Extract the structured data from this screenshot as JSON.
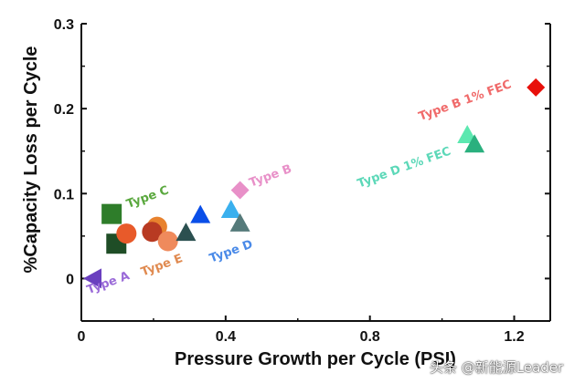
{
  "chart_data": {
    "type": "scatter",
    "xlabel": "Pressure Growth per Cycle (PSI)",
    "ylabel": "%Capacity Loss per Cycle",
    "xlim": [
      0,
      1.3
    ],
    "ylim": [
      -0.05,
      0.3
    ],
    "xticks": [
      0,
      0.4,
      0.8,
      1.2
    ],
    "xtick_labels": [
      "0",
      "0.4",
      "0.8",
      "1.2"
    ],
    "yticks": [
      0,
      0.1,
      0.2,
      0.3
    ],
    "ytick_labels": [
      "0",
      "0.1",
      "0.2",
      "0.3"
    ],
    "grid": false,
    "points": [
      {
        "group": "Type A",
        "marker": "triangle-left",
        "color": "#6a3fbf",
        "x": 0.033,
        "y": 0.0
      },
      {
        "group": "Type C",
        "marker": "square",
        "color": "#2e7d2a",
        "x": 0.084,
        "y": 0.076
      },
      {
        "group": "Type C",
        "marker": "square",
        "color": "#1f4d26",
        "x": 0.097,
        "y": 0.041
      },
      {
        "group": "Type E",
        "marker": "circle",
        "color": "#e85a2a",
        "x": 0.125,
        "y": 0.053
      },
      {
        "group": "Type E",
        "marker": "circle",
        "color": "#e8822e",
        "x": 0.21,
        "y": 0.061
      },
      {
        "group": "Type E",
        "marker": "circle",
        "color": "#b83a22",
        "x": 0.196,
        "y": 0.055
      },
      {
        "group": "Type E",
        "marker": "circle",
        "color": "#ef8a5c",
        "x": 0.24,
        "y": 0.044
      },
      {
        "group": "Type D",
        "marker": "triangle-up",
        "color": "#2b5050",
        "x": 0.29,
        "y": 0.054
      },
      {
        "group": "Type D",
        "marker": "triangle-up",
        "color": "#0a4ee8",
        "x": 0.33,
        "y": 0.075
      },
      {
        "group": "Type D",
        "marker": "triangle-up",
        "color": "#3ab0ee",
        "x": 0.415,
        "y": 0.081
      },
      {
        "group": "Type D",
        "marker": "triangle-up",
        "color": "#557a7a",
        "x": 0.44,
        "y": 0.065
      },
      {
        "group": "Type B",
        "marker": "diamond",
        "color": "#e890c8",
        "x": 0.44,
        "y": 0.104
      },
      {
        "group": "Type B 1% FEC",
        "marker": "diamond",
        "color": "#e8100a",
        "x": 1.26,
        "y": 0.225
      },
      {
        "group": "Type D 1% FEC",
        "marker": "triangle-up",
        "color": "#5ce8b0",
        "x": 1.07,
        "y": 0.169
      },
      {
        "group": "Type D 1% FEC",
        "marker": "triangle-up",
        "color": "#2ab07e",
        "x": 1.09,
        "y": 0.158
      }
    ],
    "annotations": [
      {
        "text": "Type A",
        "color": "#9a6ad8",
        "x": 0.02,
        "y": -0.018
      },
      {
        "text": "Type C",
        "color": "#5aa83e",
        "x": 0.13,
        "y": 0.083
      },
      {
        "text": "Type E",
        "color": "#e08a50",
        "x": 0.17,
        "y": 0.003
      },
      {
        "text": "Type D",
        "color": "#4a8ae8",
        "x": 0.36,
        "y": 0.019
      },
      {
        "text": "Type B",
        "color": "#e890c8",
        "x": 0.47,
        "y": 0.108
      },
      {
        "text": "Type B 1% FEC",
        "color": "#f06a6a",
        "x": 0.94,
        "y": 0.186
      },
      {
        "text": "Type D 1% FEC",
        "color": "#5cd8b8",
        "x": 0.77,
        "y": 0.107
      }
    ]
  },
  "watermark": "头条 @新能源Leader"
}
